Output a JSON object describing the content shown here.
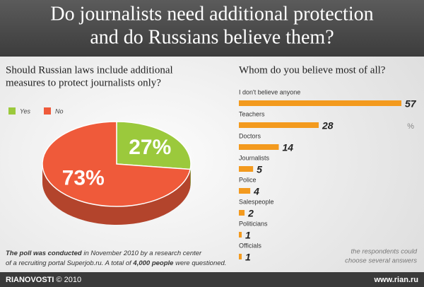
{
  "header": {
    "title_lines": [
      "Do journalists need additional protection",
      "and do Russians believe them?"
    ]
  },
  "chart_data": [
    {
      "type": "pie",
      "title_lines": [
        "Should Russian laws include additional",
        "measures to protect journalists only?"
      ],
      "categories": [
        "Yes",
        "No"
      ],
      "values": [
        27,
        73
      ],
      "value_labels": [
        "27%",
        "73%"
      ],
      "colors": [
        "#9bc93c",
        "#ef5a3a"
      ],
      "legend": "top-left"
    },
    {
      "type": "hbar",
      "title": "Whom do you believe most of all?",
      "categories": [
        "I don't believe anyone",
        "Teachers",
        "Doctors",
        "Journalists",
        "Police",
        "Salespeople",
        "Politicians",
        "Officials"
      ],
      "values": [
        57,
        28,
        14,
        5,
        4,
        2,
        1,
        1
      ],
      "color": "#f39a1e",
      "unit": "%",
      "note_lines": [
        "the respondents could",
        "choose several answers"
      ]
    }
  ],
  "note": {
    "lines": [
      [
        {
          "text": "The poll was conducted",
          "bold": true
        },
        {
          "text": " in November 2010 by a research center",
          "bold": false
        }
      ],
      [
        {
          "text": "of a recruiting portal Superjob.ru. A total of ",
          "bold": false
        },
        {
          "text": "4,000 people",
          "bold": true
        },
        {
          "text": " were questioned.",
          "bold": false
        }
      ]
    ]
  },
  "footer": {
    "brand": "RIANOVOSTI",
    "copyright": "© 2010",
    "site": "www.rian.ru"
  }
}
